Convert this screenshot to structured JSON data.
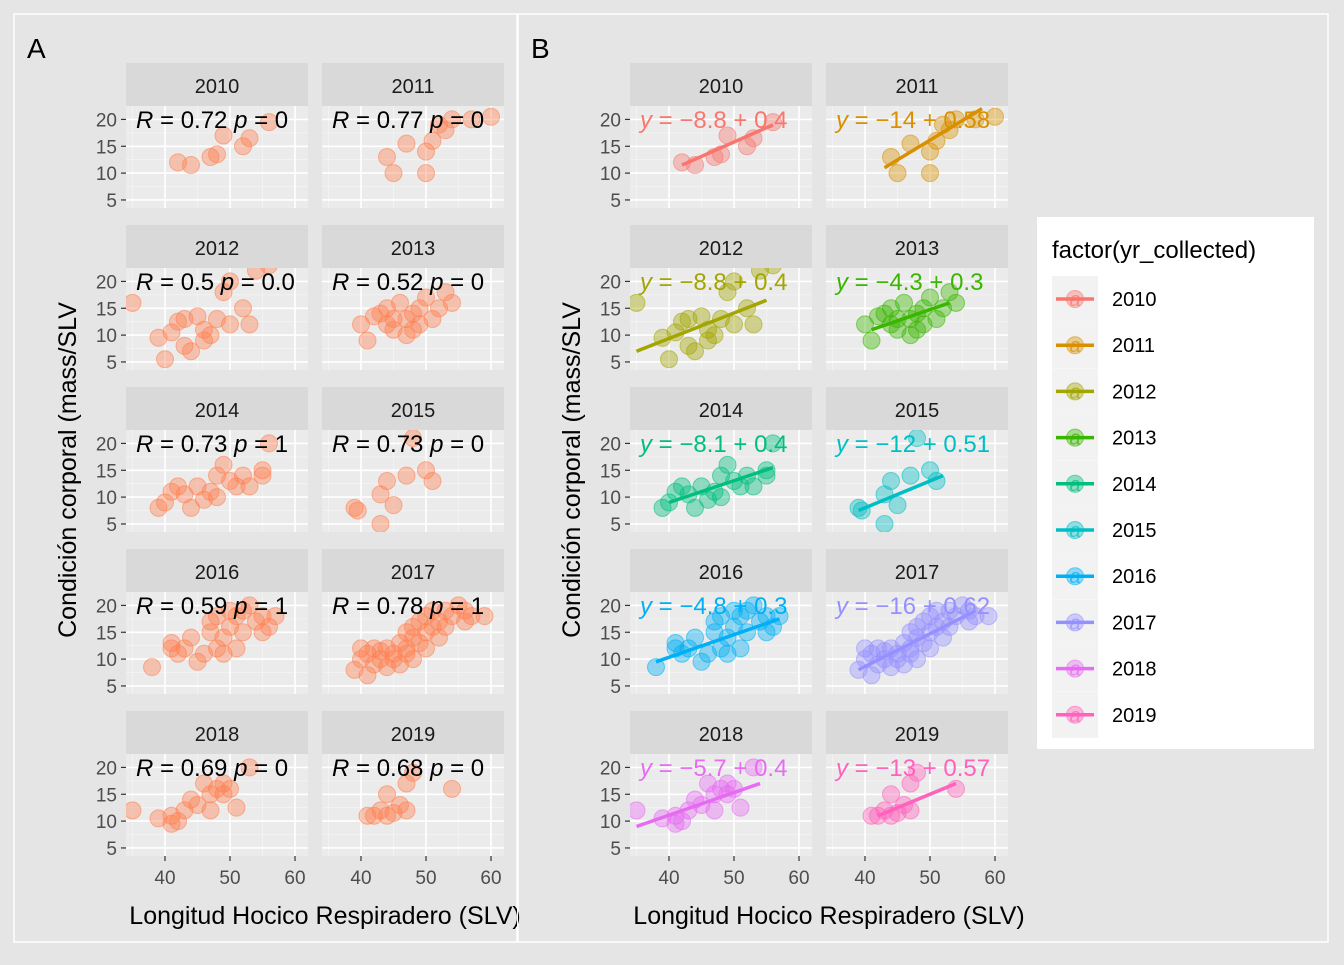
{
  "figure": {
    "panel_labels": [
      "A",
      "B"
    ],
    "xlabel": "Longitud Hocico Respiradero (SLV)",
    "ylabel": "Condición corporal (mass/SLV",
    "x_ticks": [
      40,
      50,
      60
    ],
    "y_ticks": [
      5,
      10,
      15,
      20
    ]
  },
  "legend": {
    "title": "factor(yr_collected)",
    "key_glyph": "a",
    "entries": [
      {
        "label": "2010",
        "color": "#F8766D"
      },
      {
        "label": "2011",
        "color": "#D89000"
      },
      {
        "label": "2012",
        "color": "#A3A500"
      },
      {
        "label": "2013",
        "color": "#39B600"
      },
      {
        "label": "2014",
        "color": "#00BF7D"
      },
      {
        "label": "2015",
        "color": "#00BFC4"
      },
      {
        "label": "2016",
        "color": "#00B0F6"
      },
      {
        "label": "2017",
        "color": "#9590FF"
      },
      {
        "label": "2018",
        "color": "#E76BF3"
      },
      {
        "label": "2019",
        "color": "#FF62BC"
      }
    ]
  },
  "chart_data": [
    {
      "type": "scatter",
      "panel": "A",
      "facets": [
        "2010",
        "2011",
        "2012",
        "2013",
        "2014",
        "2015",
        "2016",
        "2017",
        "2018",
        "2019"
      ],
      "point_color": "#FF7F50",
      "xlim": [
        34,
        62
      ],
      "ylim": [
        3.5,
        22.5
      ],
      "xlabel": "Longitud Hocico Respiradero (SLV)",
      "ylabel": "Condición corporal (mass/SLV",
      "annotations": [
        {
          "facet": "2010",
          "r": "R = 0.72",
          "p": "p = 0"
        },
        {
          "facet": "2011",
          "r": "R = 0.77",
          "p": "p = 0"
        },
        {
          "facet": "2012",
          "r": "R = 0.5",
          "p": "p = 0.0"
        },
        {
          "facet": "2013",
          "r": "R = 0.52",
          "p": "p = 0"
        },
        {
          "facet": "2014",
          "r": "R = 0.73",
          "p": "p = 1"
        },
        {
          "facet": "2015",
          "r": "R = 0.73",
          "p": "p = 0"
        },
        {
          "facet": "2016",
          "r": "R = 0.59",
          "p": "p = 1"
        },
        {
          "facet": "2017",
          "r": "R = 0.78",
          "p": "p = 1"
        },
        {
          "facet": "2018",
          "r": "R = 0.69",
          "p": "p = 0"
        },
        {
          "facet": "2019",
          "r": "R = 0.68",
          "p": "p = 0"
        }
      ]
    },
    {
      "type": "scatter",
      "panel": "B",
      "facets": [
        "2010",
        "2011",
        "2012",
        "2013",
        "2014",
        "2015",
        "2016",
        "2017",
        "2018",
        "2019"
      ],
      "xlim": [
        34,
        62
      ],
      "ylim": [
        3.5,
        22.5
      ],
      "xlabel": "Longitud Hocico Respiradero (SLV)",
      "ylabel": "Condición corporal (mass/SLV",
      "regression": [
        {
          "facet": "2010",
          "x": [
            42,
            56
          ],
          "y": [
            11.5,
            19
          ]
        },
        {
          "facet": "2011",
          "x": [
            43,
            58
          ],
          "y": [
            11,
            22
          ]
        },
        {
          "facet": "2012",
          "x": [
            35,
            55
          ],
          "y": [
            7,
            16.5
          ]
        },
        {
          "facet": "2013",
          "x": [
            41,
            53
          ],
          "y": [
            11,
            16
          ]
        },
        {
          "facet": "2014",
          "x": [
            40,
            56
          ],
          "y": [
            9,
            15.5
          ]
        },
        {
          "facet": "2015",
          "x": [
            39,
            52
          ],
          "y": [
            7.5,
            14
          ]
        },
        {
          "facet": "2016",
          "x": [
            38,
            57
          ],
          "y": [
            9.5,
            17.5
          ]
        },
        {
          "facet": "2017",
          "x": [
            39,
            57
          ],
          "y": [
            8,
            19
          ]
        },
        {
          "facet": "2018",
          "x": [
            35,
            54
          ],
          "y": [
            9,
            17
          ]
        },
        {
          "facet": "2019",
          "x": [
            42,
            54
          ],
          "y": [
            11,
            17
          ]
        }
      ],
      "equations": [
        {
          "facet": "2010",
          "text": "y = −8.8 + 0.4"
        },
        {
          "facet": "2011",
          "text": "y = −14 + 0.58"
        },
        {
          "facet": "2012",
          "text": "y = −8.8 + 0.4"
        },
        {
          "facet": "2013",
          "text": "y = −4.3 + 0.3"
        },
        {
          "facet": "2014",
          "text": "y = −8.1 + 0.4"
        },
        {
          "facet": "2015",
          "text": "y = −12 + 0.51"
        },
        {
          "facet": "2016",
          "text": "y = −4.8 + 0.3"
        },
        {
          "facet": "2017",
          "text": "y = −16 + 0.62"
        },
        {
          "facet": "2018",
          "text": "y = −5.7 + 0.4"
        },
        {
          "facet": "2019",
          "text": "y = −13 + 0.57"
        }
      ]
    }
  ],
  "points": {
    "2010": [
      [
        42,
        12
      ],
      [
        44,
        11.5
      ],
      [
        47,
        13
      ],
      [
        48,
        13.5
      ],
      [
        49,
        17
      ],
      [
        52,
        15
      ],
      [
        53,
        16.5
      ],
      [
        56,
        19.5
      ]
    ],
    "2011": [
      [
        44,
        13
      ],
      [
        45,
        10
      ],
      [
        47,
        15.5
      ],
      [
        50,
        10
      ],
      [
        50,
        14
      ],
      [
        51,
        16
      ],
      [
        52,
        19
      ],
      [
        53,
        18
      ],
      [
        54,
        20
      ],
      [
        57,
        20
      ],
      [
        60,
        20.5
      ]
    ],
    "2012": [
      [
        35,
        16
      ],
      [
        39,
        9.5
      ],
      [
        40,
        5.5
      ],
      [
        41,
        10.5
      ],
      [
        42,
        12.5
      ],
      [
        43,
        13
      ],
      [
        43,
        8
      ],
      [
        44,
        7
      ],
      [
        45,
        13.5
      ],
      [
        46,
        11
      ],
      [
        46,
        9
      ],
      [
        47,
        10
      ],
      [
        48,
        13
      ],
      [
        49,
        18
      ],
      [
        50,
        20
      ],
      [
        50,
        12
      ],
      [
        52,
        15
      ],
      [
        53,
        12
      ],
      [
        54,
        22
      ],
      [
        56,
        23
      ]
    ],
    "2013": [
      [
        40,
        12
      ],
      [
        41,
        9
      ],
      [
        42,
        13.5
      ],
      [
        43,
        14
      ],
      [
        44,
        12
      ],
      [
        44,
        15
      ],
      [
        45,
        11
      ],
      [
        45,
        13
      ],
      [
        46,
        16
      ],
      [
        47,
        13
      ],
      [
        47,
        10
      ],
      [
        48,
        14
      ],
      [
        48,
        11
      ],
      [
        49,
        15
      ],
      [
        49,
        12
      ],
      [
        50,
        17
      ],
      [
        51,
        13
      ],
      [
        52,
        15
      ],
      [
        53,
        18
      ],
      [
        54,
        16
      ]
    ],
    "2014": [
      [
        39,
        8
      ],
      [
        40,
        9
      ],
      [
        41,
        11
      ],
      [
        42,
        12
      ],
      [
        43,
        10.5
      ],
      [
        44,
        8
      ],
      [
        45,
        12
      ],
      [
        46,
        9.5
      ],
      [
        47,
        11
      ],
      [
        48,
        10
      ],
      [
        48,
        14
      ],
      [
        49,
        16
      ],
      [
        50,
        13
      ],
      [
        51,
        12
      ],
      [
        52,
        14
      ],
      [
        53,
        12
      ],
      [
        55,
        15
      ],
      [
        55,
        14
      ],
      [
        56,
        20
      ]
    ],
    "2015": [
      [
        39,
        8
      ],
      [
        39.5,
        7.5
      ],
      [
        43,
        5
      ],
      [
        43,
        10.5
      ],
      [
        44,
        13
      ],
      [
        45,
        8.5
      ],
      [
        47,
        14
      ],
      [
        48,
        21
      ],
      [
        50,
        15
      ],
      [
        51,
        13
      ]
    ],
    "2016": [
      [
        38,
        8.5
      ],
      [
        41,
        13
      ],
      [
        41,
        12
      ],
      [
        42,
        11
      ],
      [
        43,
        12
      ],
      [
        44,
        14
      ],
      [
        45,
        9.5
      ],
      [
        46,
        11
      ],
      [
        47,
        17
      ],
      [
        47,
        15
      ],
      [
        48,
        12
      ],
      [
        48,
        18
      ],
      [
        49,
        14
      ],
      [
        49,
        11
      ],
      [
        50,
        19
      ],
      [
        50,
        16
      ],
      [
        51,
        18
      ],
      [
        51,
        12
      ],
      [
        52,
        15
      ],
      [
        52,
        19
      ],
      [
        53,
        20
      ],
      [
        54,
        17
      ],
      [
        55,
        15
      ],
      [
        55,
        18
      ],
      [
        56,
        16
      ],
      [
        57,
        18
      ]
    ],
    "2017": [
      [
        39,
        8
      ],
      [
        40,
        10
      ],
      [
        40,
        12
      ],
      [
        41,
        7
      ],
      [
        41,
        11
      ],
      [
        42,
        9
      ],
      [
        42,
        12
      ],
      [
        43,
        10
      ],
      [
        43,
        11.5
      ],
      [
        44,
        8.5
      ],
      [
        44,
        12
      ],
      [
        45,
        10
      ],
      [
        45,
        11
      ],
      [
        46,
        13
      ],
      [
        46,
        9
      ],
      [
        47,
        12
      ],
      [
        47,
        15
      ],
      [
        47,
        11
      ],
      [
        48,
        14
      ],
      [
        48,
        16
      ],
      [
        48,
        10
      ],
      [
        49,
        13
      ],
      [
        49,
        17
      ],
      [
        50,
        15
      ],
      [
        50,
        18
      ],
      [
        50,
        12
      ],
      [
        51,
        16
      ],
      [
        51,
        19
      ],
      [
        52,
        14
      ],
      [
        52,
        17
      ],
      [
        53,
        19
      ],
      [
        53,
        16
      ],
      [
        54,
        18
      ],
      [
        55,
        20
      ],
      [
        56,
        17
      ],
      [
        56,
        19
      ],
      [
        57,
        18
      ],
      [
        59,
        18
      ]
    ],
    "2018": [
      [
        35,
        12
      ],
      [
        39,
        10.5
      ],
      [
        41,
        11
      ],
      [
        41,
        9.5
      ],
      [
        42,
        10
      ],
      [
        43,
        12
      ],
      [
        44,
        14
      ],
      [
        45,
        13
      ],
      [
        46,
        17
      ],
      [
        47,
        15
      ],
      [
        47,
        12
      ],
      [
        48,
        16
      ],
      [
        49,
        17
      ],
      [
        49,
        15
      ],
      [
        50,
        16
      ],
      [
        51,
        12.5
      ],
      [
        53,
        20
      ]
    ],
    "2019": [
      [
        41,
        11
      ],
      [
        42,
        11
      ],
      [
        43,
        12
      ],
      [
        44,
        15
      ],
      [
        44,
        11
      ],
      [
        45,
        11.5
      ],
      [
        46,
        13
      ],
      [
        47,
        17
      ],
      [
        47,
        12
      ],
      [
        48,
        19
      ],
      [
        54,
        16
      ]
    ]
  }
}
